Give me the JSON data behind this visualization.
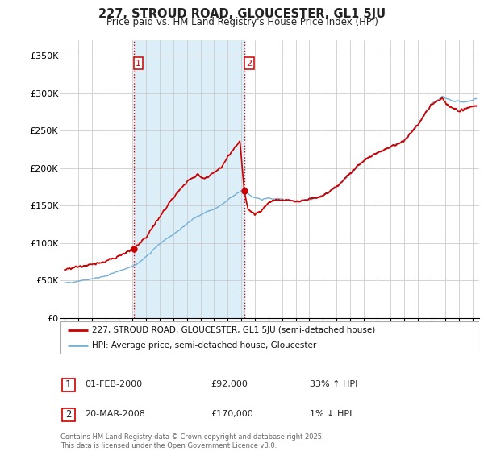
{
  "title": "227, STROUD ROAD, GLOUCESTER, GL1 5JU",
  "subtitle": "Price paid vs. HM Land Registry's House Price Index (HPI)",
  "ylabel_ticks": [
    "£0",
    "£50K",
    "£100K",
    "£150K",
    "£200K",
    "£250K",
    "£300K",
    "£350K"
  ],
  "ytick_values": [
    0,
    50000,
    100000,
    150000,
    200000,
    250000,
    300000,
    350000
  ],
  "ylim": [
    0,
    370000
  ],
  "xlim_start": 1994.7,
  "xlim_end": 2025.5,
  "line1_color": "#cc0000",
  "line2_color": "#7ab0d4",
  "shaded_color": "#dceef8",
  "vline_color": "#cc0000",
  "vline_style": ":",
  "transaction1_x": 2000.08,
  "transaction1_y": 92000,
  "transaction2_x": 2008.22,
  "transaction2_y": 170000,
  "legend_label1": "227, STROUD ROAD, GLOUCESTER, GL1 5JU (semi-detached house)",
  "legend_label2": "HPI: Average price, semi-detached house, Gloucester",
  "table_row1_num": "1",
  "table_row1_date": "01-FEB-2000",
  "table_row1_price": "£92,000",
  "table_row1_hpi": "33% ↑ HPI",
  "table_row2_num": "2",
  "table_row2_date": "20-MAR-2008",
  "table_row2_price": "£170,000",
  "table_row2_hpi": "1% ↓ HPI",
  "footer": "Contains HM Land Registry data © Crown copyright and database right 2025.\nThis data is licensed under the Open Government Licence v3.0.",
  "background_color": "#ffffff",
  "plot_bg_color": "#ffffff",
  "grid_color": "#cccccc"
}
